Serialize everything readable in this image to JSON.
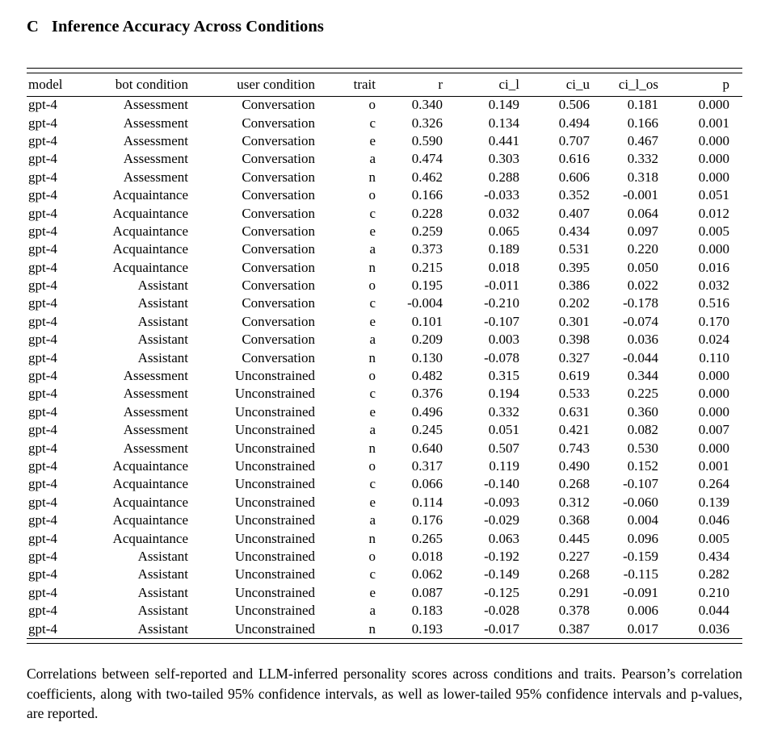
{
  "page": {
    "section_label": "C",
    "section_title": "Inference Accuracy Across Conditions",
    "caption": "Correlations between self-reported and LLM-inferred personality scores across conditions and traits. Pearson’s correlation coefficients, along with two-tailed 95% confidence intervals, as well as lower-tailed 95% confidence intervals and p-values, are reported."
  },
  "table": {
    "columns": [
      "model",
      "bot condition",
      "user condition",
      "trait",
      "r",
      "ci_l",
      "ci_u",
      "ci_l_os",
      "p"
    ],
    "rows": [
      [
        "gpt-4",
        "Assessment",
        "Conversation",
        "o",
        "0.340",
        "0.149",
        "0.506",
        "0.181",
        "0.000"
      ],
      [
        "gpt-4",
        "Assessment",
        "Conversation",
        "c",
        "0.326",
        "0.134",
        "0.494",
        "0.166",
        "0.001"
      ],
      [
        "gpt-4",
        "Assessment",
        "Conversation",
        "e",
        "0.590",
        "0.441",
        "0.707",
        "0.467",
        "0.000"
      ],
      [
        "gpt-4",
        "Assessment",
        "Conversation",
        "a",
        "0.474",
        "0.303",
        "0.616",
        "0.332",
        "0.000"
      ],
      [
        "gpt-4",
        "Assessment",
        "Conversation",
        "n",
        "0.462",
        "0.288",
        "0.606",
        "0.318",
        "0.000"
      ],
      [
        "gpt-4",
        "Acquaintance",
        "Conversation",
        "o",
        "0.166",
        "-0.033",
        "0.352",
        "-0.001",
        "0.051"
      ],
      [
        "gpt-4",
        "Acquaintance",
        "Conversation",
        "c",
        "0.228",
        "0.032",
        "0.407",
        "0.064",
        "0.012"
      ],
      [
        "gpt-4",
        "Acquaintance",
        "Conversation",
        "e",
        "0.259",
        "0.065",
        "0.434",
        "0.097",
        "0.005"
      ],
      [
        "gpt-4",
        "Acquaintance",
        "Conversation",
        "a",
        "0.373",
        "0.189",
        "0.531",
        "0.220",
        "0.000"
      ],
      [
        "gpt-4",
        "Acquaintance",
        "Conversation",
        "n",
        "0.215",
        "0.018",
        "0.395",
        "0.050",
        "0.016"
      ],
      [
        "gpt-4",
        "Assistant",
        "Conversation",
        "o",
        "0.195",
        "-0.011",
        "0.386",
        "0.022",
        "0.032"
      ],
      [
        "gpt-4",
        "Assistant",
        "Conversation",
        "c",
        "-0.004",
        "-0.210",
        "0.202",
        "-0.178",
        "0.516"
      ],
      [
        "gpt-4",
        "Assistant",
        "Conversation",
        "e",
        "0.101",
        "-0.107",
        "0.301",
        "-0.074",
        "0.170"
      ],
      [
        "gpt-4",
        "Assistant",
        "Conversation",
        "a",
        "0.209",
        "0.003",
        "0.398",
        "0.036",
        "0.024"
      ],
      [
        "gpt-4",
        "Assistant",
        "Conversation",
        "n",
        "0.130",
        "-0.078",
        "0.327",
        "-0.044",
        "0.110"
      ],
      [
        "gpt-4",
        "Assessment",
        "Unconstrained",
        "o",
        "0.482",
        "0.315",
        "0.619",
        "0.344",
        "0.000"
      ],
      [
        "gpt-4",
        "Assessment",
        "Unconstrained",
        "c",
        "0.376",
        "0.194",
        "0.533",
        "0.225",
        "0.000"
      ],
      [
        "gpt-4",
        "Assessment",
        "Unconstrained",
        "e",
        "0.496",
        "0.332",
        "0.631",
        "0.360",
        "0.000"
      ],
      [
        "gpt-4",
        "Assessment",
        "Unconstrained",
        "a",
        "0.245",
        "0.051",
        "0.421",
        "0.082",
        "0.007"
      ],
      [
        "gpt-4",
        "Assessment",
        "Unconstrained",
        "n",
        "0.640",
        "0.507",
        "0.743",
        "0.530",
        "0.000"
      ],
      [
        "gpt-4",
        "Acquaintance",
        "Unconstrained",
        "o",
        "0.317",
        "0.119",
        "0.490",
        "0.152",
        "0.001"
      ],
      [
        "gpt-4",
        "Acquaintance",
        "Unconstrained",
        "c",
        "0.066",
        "-0.140",
        "0.268",
        "-0.107",
        "0.264"
      ],
      [
        "gpt-4",
        "Acquaintance",
        "Unconstrained",
        "e",
        "0.114",
        "-0.093",
        "0.312",
        "-0.060",
        "0.139"
      ],
      [
        "gpt-4",
        "Acquaintance",
        "Unconstrained",
        "a",
        "0.176",
        "-0.029",
        "0.368",
        "0.004",
        "0.046"
      ],
      [
        "gpt-4",
        "Acquaintance",
        "Unconstrained",
        "n",
        "0.265",
        "0.063",
        "0.445",
        "0.096",
        "0.005"
      ],
      [
        "gpt-4",
        "Assistant",
        "Unconstrained",
        "o",
        "0.018",
        "-0.192",
        "0.227",
        "-0.159",
        "0.434"
      ],
      [
        "gpt-4",
        "Assistant",
        "Unconstrained",
        "c",
        "0.062",
        "-0.149",
        "0.268",
        "-0.115",
        "0.282"
      ],
      [
        "gpt-4",
        "Assistant",
        "Unconstrained",
        "e",
        "0.087",
        "-0.125",
        "0.291",
        "-0.091",
        "0.210"
      ],
      [
        "gpt-4",
        "Assistant",
        "Unconstrained",
        "a",
        "0.183",
        "-0.028",
        "0.378",
        "0.006",
        "0.044"
      ],
      [
        "gpt-4",
        "Assistant",
        "Unconstrained",
        "n",
        "0.193",
        "-0.017",
        "0.387",
        "0.017",
        "0.036"
      ]
    ]
  }
}
